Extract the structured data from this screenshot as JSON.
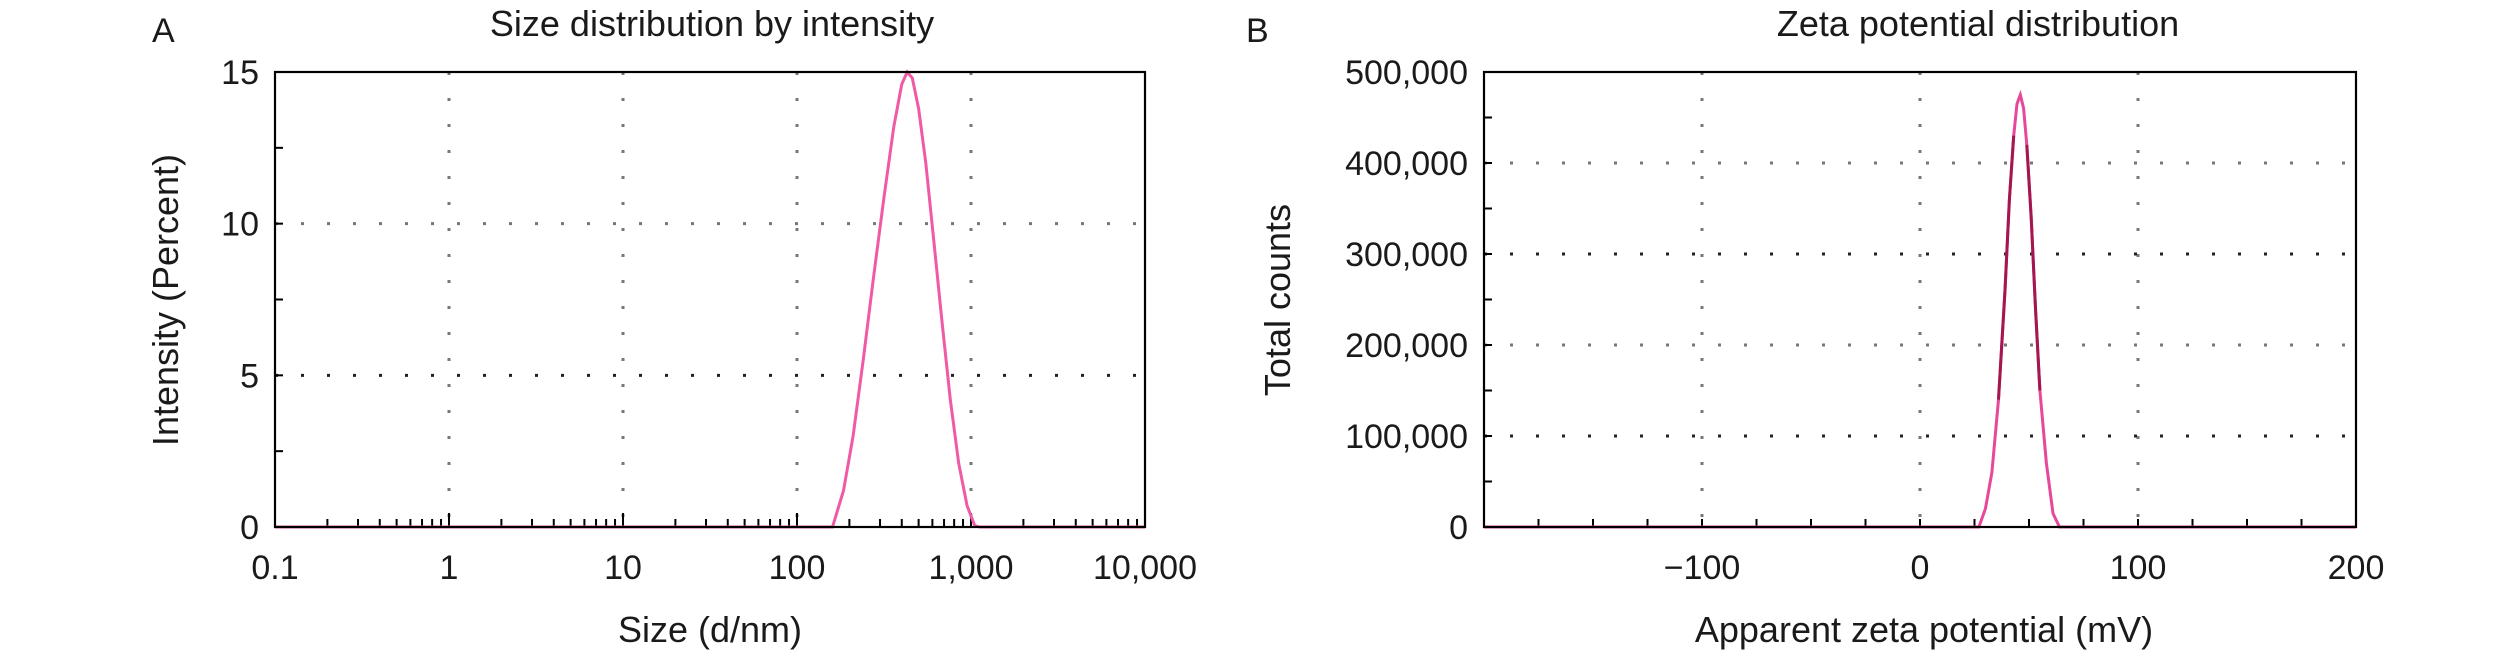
{
  "chart_data": [
    {
      "panel": "A",
      "type": "line",
      "title": "Size distribution by intensity",
      "xlabel": "Size (d/nm)",
      "ylabel": "Intensity (Percent)",
      "x_scale": "log",
      "xlim": [
        0.1,
        10000
      ],
      "ylim": [
        0,
        15
      ],
      "xticks": [
        0.1,
        1,
        10,
        100,
        1000,
        10000
      ],
      "xtick_labels": [
        "0.1",
        "1",
        "10",
        "100",
        "1,000",
        "10,000"
      ],
      "yticks": [
        0,
        5,
        10,
        15
      ],
      "ytick_labels": [
        "0",
        "5",
        "10",
        "15"
      ],
      "grid": true,
      "series": [
        {
          "color": "#f05aa5",
          "x": [
            0.1,
            100,
            160,
            185,
            210,
            240,
            275,
            315,
            360,
            400,
            430,
            460,
            500,
            550,
            610,
            680,
            760,
            850,
            950,
            1050,
            1120,
            10000
          ],
          "y": [
            0,
            0,
            0,
            1.2,
            3.0,
            5.5,
            8.2,
            10.8,
            13.2,
            14.6,
            15.0,
            14.8,
            13.8,
            12.0,
            9.5,
            6.8,
            4.2,
            2.1,
            0.7,
            0.05,
            0,
            0
          ]
        }
      ]
    },
    {
      "panel": "B",
      "type": "line",
      "title": "Zeta potential distribution",
      "xlabel": "Apparent zeta potential (mV)",
      "ylabel": "Total counts",
      "xlim": [
        -200,
        200
      ],
      "ylim": [
        0,
        500000
      ],
      "xticks": [
        -100,
        0,
        100,
        200
      ],
      "xtick_labels": [
        "−100",
        "0",
        "100",
        "200"
      ],
      "yticks": [
        0,
        100000,
        200000,
        300000,
        400000,
        500000
      ],
      "ytick_labels": [
        "0",
        "100,000",
        "200,000",
        "300,000",
        "400,000",
        "500,000"
      ],
      "grid": true,
      "series": [
        {
          "color": "#e8479a",
          "x": [
            -200,
            27,
            30,
            33,
            36,
            39,
            41,
            43,
            44.5,
            46,
            47.5,
            49,
            51,
            53,
            55,
            58,
            61,
            64,
            200
          ],
          "y": [
            0,
            0,
            20000,
            60000,
            140000,
            260000,
            360000,
            430000,
            465000,
            475000,
            460000,
            420000,
            340000,
            240000,
            150000,
            70000,
            15000,
            0,
            0
          ]
        }
      ]
    }
  ]
}
